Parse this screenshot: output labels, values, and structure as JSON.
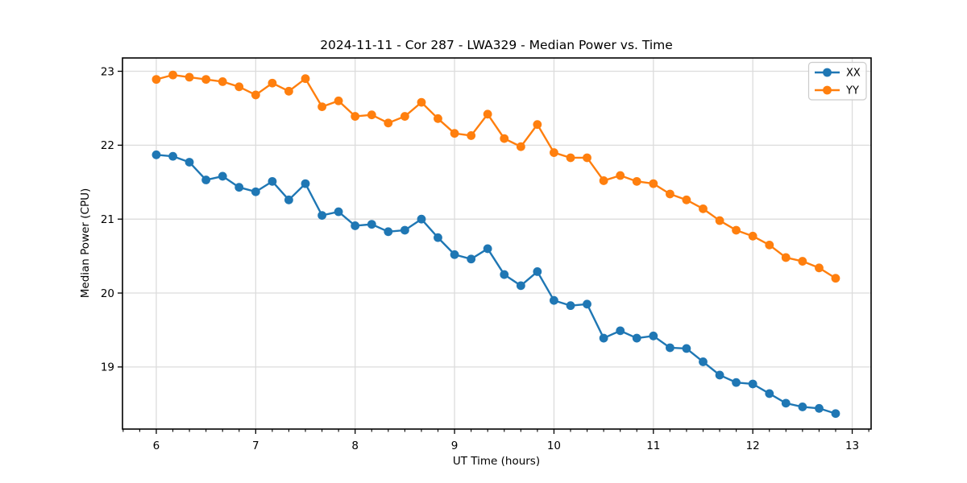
{
  "chart_data": {
    "type": "line",
    "title": "2024-11-11 - Cor 287 - LWA329 - Median Power vs. Time",
    "xlabel": "UT Time (hours)",
    "ylabel": "Median Power (CPU)",
    "xlim": [
      5.66,
      13.19
    ],
    "ylim": [
      18.16,
      23.18
    ],
    "x_ticks": [
      6,
      7,
      8,
      9,
      10,
      11,
      12,
      13
    ],
    "y_ticks": [
      19,
      20,
      21,
      22,
      23
    ],
    "x_minor_tick_step_hours": 0.1667,
    "grid": true,
    "grid_color": "#dcdcdc",
    "legend_position": "upper right",
    "marker": "circle",
    "x": [
      6.0,
      6.167,
      6.333,
      6.5,
      6.667,
      6.833,
      7.0,
      7.167,
      7.333,
      7.5,
      7.667,
      7.833,
      8.0,
      8.167,
      8.333,
      8.5,
      8.667,
      8.833,
      9.0,
      9.167,
      9.333,
      9.5,
      9.667,
      9.833,
      10.0,
      10.167,
      10.333,
      10.5,
      10.667,
      10.833,
      11.0,
      11.167,
      11.333,
      11.5,
      11.667,
      11.833,
      12.0,
      12.167,
      12.333,
      12.5,
      12.667,
      12.833
    ],
    "series": [
      {
        "name": "XX",
        "color": "#1f77b4",
        "values": [
          21.87,
          21.85,
          21.77,
          21.53,
          21.58,
          21.43,
          21.37,
          21.51,
          21.26,
          21.48,
          21.05,
          21.1,
          20.91,
          20.93,
          20.83,
          20.85,
          21.0,
          20.75,
          20.52,
          20.46,
          20.6,
          20.25,
          20.1,
          20.29,
          19.9,
          19.83,
          19.85,
          19.39,
          19.49,
          19.39,
          19.42,
          19.26,
          19.25,
          19.07,
          18.89,
          18.79,
          18.77,
          18.64,
          18.51,
          18.46,
          18.44,
          18.37
        ]
      },
      {
        "name": "YY",
        "color": "#ff7f0e",
        "values": [
          22.89,
          22.95,
          22.92,
          22.89,
          22.86,
          22.79,
          22.68,
          22.84,
          22.73,
          22.9,
          22.52,
          22.6,
          22.39,
          22.41,
          22.3,
          22.39,
          22.58,
          22.36,
          22.16,
          22.13,
          22.42,
          22.09,
          21.98,
          22.28,
          21.9,
          21.83,
          21.83,
          21.52,
          21.59,
          21.51,
          21.48,
          21.34,
          21.26,
          21.14,
          20.98,
          20.85,
          20.77,
          20.65,
          20.48,
          20.43,
          20.34,
          20.2
        ]
      }
    ]
  }
}
